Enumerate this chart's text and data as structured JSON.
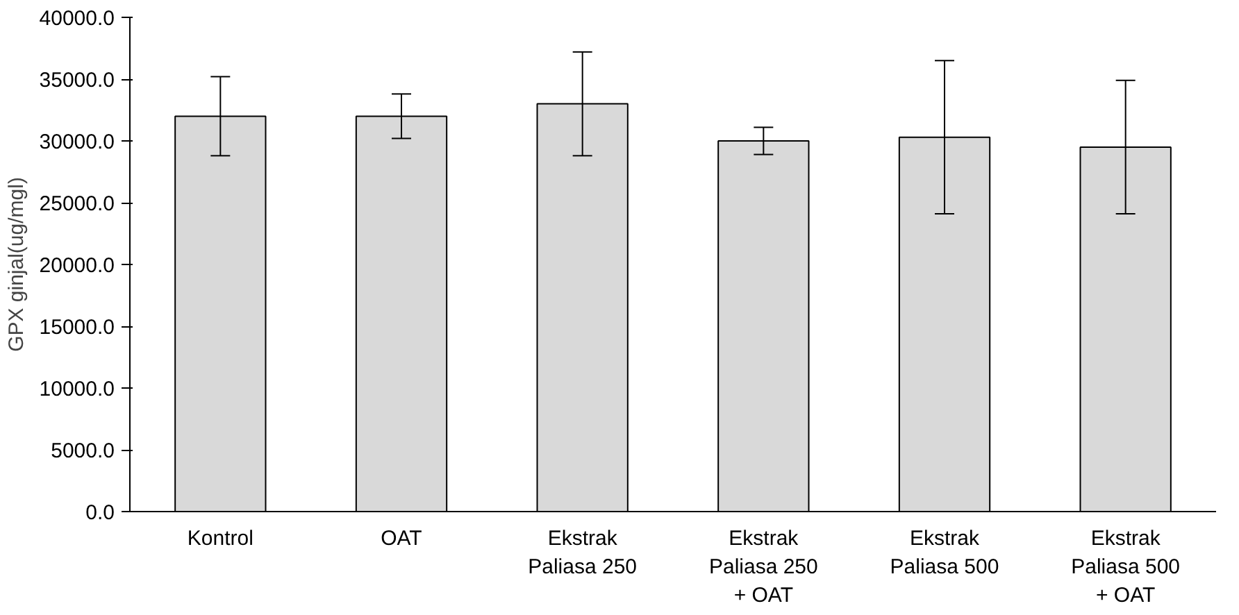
{
  "chart_data": {
    "type": "bar",
    "ylabel": "GPX ginjal(ug/mgl)",
    "categories": [
      "Kontrol",
      "OAT",
      "Ekstrak\nPaliasa 250",
      "Ekstrak\nPaliasa 250\n+ OAT",
      "Ekstrak\nPaliasa 500",
      "Ekstrak\nPaliasa 500\n+ OAT"
    ],
    "values": [
      32000,
      32000,
      33000,
      30000,
      30300,
      29500
    ],
    "errors": [
      3200,
      1800,
      4200,
      1100,
      6200,
      5400
    ],
    "color": "#d9d9d9",
    "ylim": [
      0,
      40000
    ],
    "yticks": [
      {
        "value": 0,
        "label": "0.0"
      },
      {
        "value": 5000,
        "label": "5000.0"
      },
      {
        "value": 10000,
        "label": "10000.0"
      },
      {
        "value": 15000,
        "label": "15000.0"
      },
      {
        "value": 20000,
        "label": "20000.0"
      },
      {
        "value": 25000,
        "label": "25000.0"
      },
      {
        "value": 30000,
        "label": "30000.0"
      },
      {
        "value": 35000,
        "label": "35000.0"
      },
      {
        "value": 40000,
        "label": "40000.0"
      }
    ],
    "grid": false
  }
}
